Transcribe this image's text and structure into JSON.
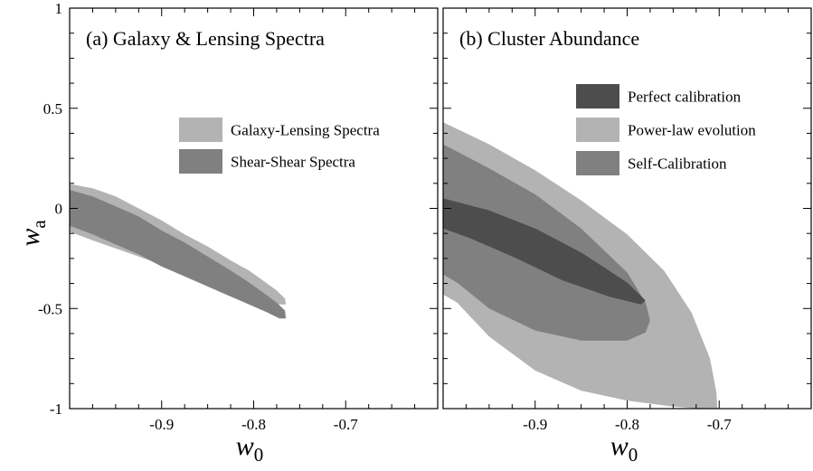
{
  "chart_data": [
    {
      "type": "area",
      "title": "(a) Galaxy & Lensing Spectra",
      "xlabel": "w",
      "xlabel_sub": "0",
      "ylabel": "w",
      "ylabel_sub": "a",
      "xlim": [
        -1.0,
        -0.6
      ],
      "ylim": [
        -1.0,
        1.0
      ],
      "xticks": [
        -0.9,
        -0.8,
        -0.7
      ],
      "xtick_labels": [
        "-0.9",
        "-0.8",
        "-0.7"
      ],
      "yticks": [
        1,
        0.5,
        0,
        -0.5,
        -1
      ],
      "ytick_labels": [
        "1",
        "0.5",
        "0",
        "-0.5",
        "-1"
      ],
      "legend": "top-right",
      "series": [
        {
          "name": "Galaxy-Lensing Spectra",
          "color": "#b3b3b3",
          "x": [
            -0.765,
            -0.766,
            -0.775,
            -0.79,
            -0.805,
            -0.825,
            -0.85,
            -0.875,
            -0.9,
            -0.925,
            -0.95,
            -0.975,
            -0.998,
            -1.0,
            -1.0,
            -0.998,
            -0.975,
            -0.95,
            -0.925,
            -0.9,
            -0.875,
            -0.85,
            -0.825,
            -0.8,
            -0.785,
            -0.772,
            -0.765
          ],
          "y": [
            -0.48,
            -0.45,
            -0.41,
            -0.36,
            -0.31,
            -0.26,
            -0.19,
            -0.13,
            -0.06,
            0.0,
            0.06,
            0.1,
            0.12,
            0.12,
            -0.12,
            -0.12,
            -0.16,
            -0.2,
            -0.24,
            -0.28,
            -0.32,
            -0.36,
            -0.4,
            -0.43,
            -0.46,
            -0.48,
            -0.48
          ]
        },
        {
          "name": "Shear-Shear Spectra",
          "color": "#808080",
          "x": [
            -0.765,
            -0.766,
            -0.775,
            -0.79,
            -0.805,
            -0.825,
            -0.85,
            -0.875,
            -0.9,
            -0.925,
            -0.95,
            -0.975,
            -0.998,
            -1.0,
            -1.0,
            -0.998,
            -0.975,
            -0.95,
            -0.925,
            -0.9,
            -0.875,
            -0.85,
            -0.825,
            -0.8,
            -0.785,
            -0.772,
            -0.765
          ],
          "y": [
            -0.55,
            -0.51,
            -0.47,
            -0.42,
            -0.37,
            -0.31,
            -0.24,
            -0.17,
            -0.11,
            -0.04,
            0.01,
            0.06,
            0.09,
            0.09,
            -0.09,
            -0.09,
            -0.13,
            -0.18,
            -0.23,
            -0.29,
            -0.34,
            -0.39,
            -0.44,
            -0.49,
            -0.52,
            -0.55,
            -0.55
          ]
        }
      ]
    },
    {
      "type": "area",
      "title": "(b) Cluster Abundance",
      "xlabel": "w",
      "xlabel_sub": "0",
      "xlim": [
        -1.0,
        -0.6
      ],
      "ylim": [
        -1.0,
        1.0
      ],
      "xticks": [
        -0.9,
        -0.8,
        -0.7
      ],
      "xtick_labels": [
        "-0.9",
        "-0.8",
        "-0.7"
      ],
      "legend": "top-right",
      "series": [
        {
          "name": "Power-law evolution",
          "color": "#b3b3b3",
          "x": [
            -1.0,
            -0.95,
            -0.9,
            -0.85,
            -0.8,
            -0.76,
            -0.73,
            -0.71,
            -0.703,
            -0.702,
            -0.705,
            -0.72,
            -0.75,
            -0.8,
            -0.85,
            -0.9,
            -0.95,
            -0.985,
            -1.0
          ],
          "y": [
            0.43,
            0.32,
            0.19,
            0.04,
            -0.13,
            -0.31,
            -0.52,
            -0.75,
            -0.92,
            -1.0,
            -1.0,
            -1.0,
            -0.99,
            -0.96,
            -0.91,
            -0.81,
            -0.64,
            -0.47,
            -0.43
          ]
        },
        {
          "name": "Self-Calibration",
          "color": "#808080",
          "x": [
            -1.0,
            -0.95,
            -0.9,
            -0.85,
            -0.8,
            -0.78,
            -0.775,
            -0.78,
            -0.8,
            -0.85,
            -0.9,
            -0.95,
            -0.985,
            -1.0
          ],
          "y": [
            0.32,
            0.2,
            0.07,
            -0.1,
            -0.32,
            -0.47,
            -0.56,
            -0.62,
            -0.66,
            -0.66,
            -0.61,
            -0.5,
            -0.37,
            -0.33
          ]
        },
        {
          "name": "Perfect calibration",
          "color": "#4d4d4d",
          "x": [
            -1.0,
            -0.95,
            -0.9,
            -0.85,
            -0.8,
            -0.78,
            -0.785,
            -0.82,
            -0.87,
            -0.92,
            -0.97,
            -1.0
          ],
          "y": [
            0.05,
            -0.01,
            -0.1,
            -0.22,
            -0.37,
            -0.46,
            -0.48,
            -0.44,
            -0.36,
            -0.25,
            -0.15,
            -0.1
          ]
        }
      ],
      "legend_order": [
        "Perfect calibration",
        "Power-law evolution",
        "Self-Calibration"
      ]
    }
  ]
}
